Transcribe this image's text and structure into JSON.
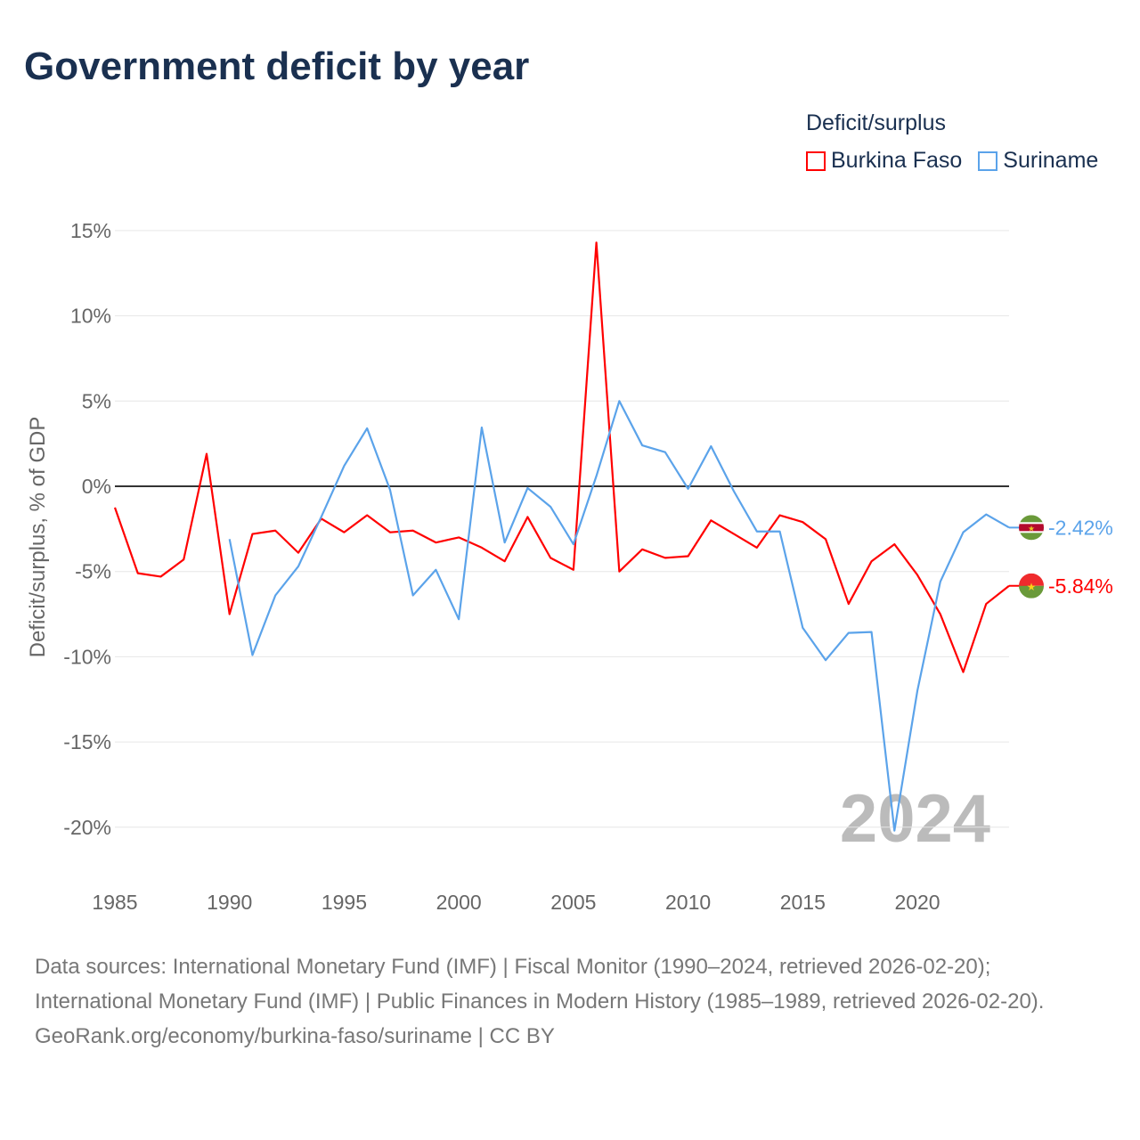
{
  "title": "Government deficit by year",
  "legend": {
    "title": "Deficit/surplus",
    "items": [
      {
        "name": "Burkina Faso",
        "color": "#ff0000"
      },
      {
        "name": "Suriname",
        "color": "#5ba3ea"
      }
    ]
  },
  "footer": {
    "sources": "Data sources: International Monetary Fund (IMF) | Fiscal Monitor (1990–2024, retrieved 2026-02-20); International Monetary Fund (IMF) | Public Finances in Modern History (1985–1989, retrieved 2026-02-20).",
    "credit": "GeoRank.org/economy/burkina-faso/suriname | CC BY"
  },
  "chart_data": {
    "type": "line",
    "title": "Government deficit by year",
    "ylabel": "Deficit/surplus, % of GDP",
    "xlabel": "",
    "xlim": [
      1985,
      2024
    ],
    "ylim": [
      -20,
      15
    ],
    "x_ticks": [
      1985,
      1990,
      1995,
      2000,
      2005,
      2010,
      2015,
      2020
    ],
    "y_ticks": [
      15,
      10,
      5,
      0,
      -5,
      -10,
      -15,
      -20
    ],
    "y_tick_labels": [
      "15%",
      "10%",
      "5%",
      "0%",
      "-5%",
      "-10%",
      "-15%",
      "-20%"
    ],
    "year_watermark": "2024",
    "series": [
      {
        "name": "Burkina Faso",
        "color": "#ff0000",
        "end_label": "-5.84%",
        "x": [
          1985,
          1986,
          1987,
          1988,
          1989,
          1990,
          1991,
          1992,
          1993,
          1994,
          1995,
          1996,
          1997,
          1998,
          1999,
          2000,
          2001,
          2002,
          2003,
          2004,
          2005,
          2006,
          2007,
          2008,
          2009,
          2010,
          2011,
          2012,
          2013,
          2014,
          2015,
          2016,
          2017,
          2018,
          2019,
          2020,
          2021,
          2022,
          2023,
          2024
        ],
        "values": [
          -1.25,
          -5.1,
          -5.3,
          -4.3,
          1.9,
          -7.5,
          -2.8,
          -2.6,
          -3.9,
          -1.9,
          -2.7,
          -1.7,
          -2.7,
          -2.6,
          -3.3,
          -3.0,
          -3.6,
          -4.4,
          -1.8,
          -4.2,
          -4.9,
          14.3,
          -5.0,
          -3.7,
          -4.2,
          -4.1,
          -2.0,
          -2.8,
          -3.6,
          -1.7,
          -2.1,
          -3.1,
          -6.9,
          -4.4,
          -3.4,
          -5.2,
          -7.5,
          -10.9,
          -6.9,
          -5.84
        ]
      },
      {
        "name": "Suriname",
        "color": "#5ba3ea",
        "end_label": "-2.42%",
        "x": [
          1990,
          1991,
          1992,
          1993,
          1994,
          1995,
          1996,
          1997,
          1998,
          1999,
          2000,
          2001,
          2002,
          2003,
          2004,
          2005,
          2006,
          2007,
          2008,
          2009,
          2010,
          2011,
          2012,
          2013,
          2014,
          2015,
          2016,
          2017,
          2018,
          2019,
          2020,
          2021,
          2022,
          2023,
          2024
        ],
        "values": [
          -3.1,
          -9.9,
          -6.4,
          -4.7,
          -1.8,
          1.2,
          3.4,
          -0.2,
          -6.4,
          -4.9,
          -7.8,
          3.45,
          -3.3,
          -0.1,
          -1.2,
          -3.4,
          0.6,
          5.0,
          2.4,
          2.0,
          -0.15,
          2.35,
          -0.3,
          -2.65,
          -2.65,
          -8.3,
          -10.2,
          -8.6,
          -8.55,
          -20.2,
          -12.0,
          -5.6,
          -2.7,
          -1.65,
          -2.42
        ]
      }
    ]
  }
}
